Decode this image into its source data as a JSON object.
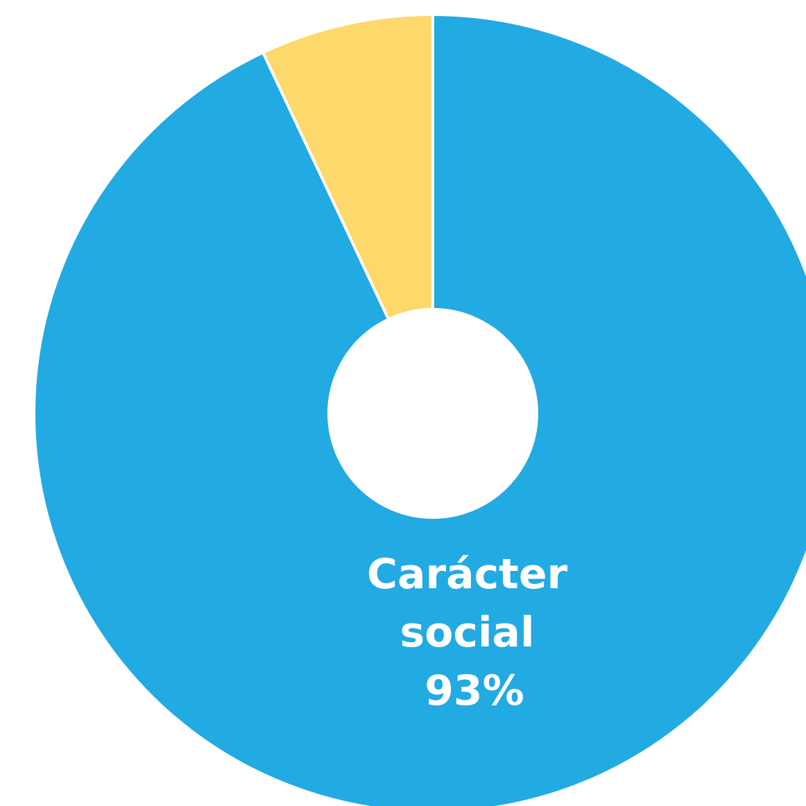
{
  "chart_data": {
    "type": "pie",
    "donut": true,
    "slices": [
      {
        "label_lines": [
          "Carácter",
          "social",
          "93%"
        ],
        "value": 93,
        "color": "#22aae2"
      },
      {
        "label_lines": [],
        "value": 7,
        "color": "#fdd86b"
      }
    ],
    "separator_color": "#ffffff",
    "start_angle_deg": 0,
    "direction": "clockwise"
  }
}
